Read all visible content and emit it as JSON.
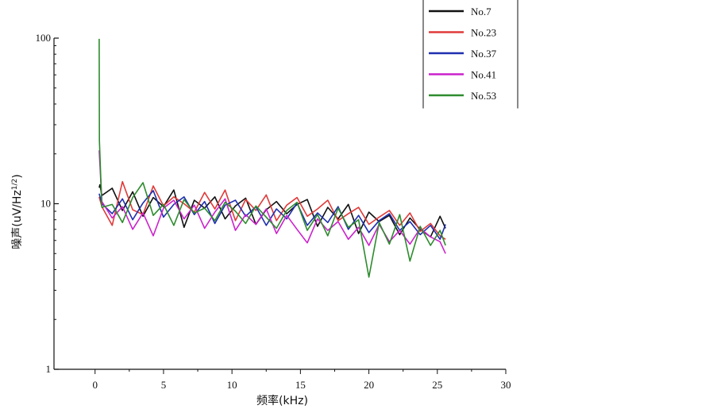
{
  "chart_data": {
    "type": "line",
    "xlabel": "频率(kHz)",
    "ylabel": "噪声(uV/Hz",
    "ylabel_sup": "1/2",
    "ylabel_close": ")",
    "xlim": [
      -3,
      30
    ],
    "ylim": [
      1,
      100
    ],
    "yscale": "log",
    "x_ticks": [
      0,
      5,
      10,
      15,
      20,
      25,
      30
    ],
    "y_ticks": [
      1,
      10,
      100
    ],
    "y_tick_labels": [
      "1",
      "10",
      "100"
    ],
    "grid": false,
    "legend_position": "top-right",
    "series": [
      {
        "name": "No.7",
        "color": "#111111",
        "x": [
          0.3,
          0.35,
          0.5,
          1.25,
          2.0,
          2.75,
          3.5,
          4.25,
          5.0,
          5.75,
          6.5,
          7.25,
          8.0,
          8.75,
          9.5,
          10.25,
          11.0,
          11.75,
          12.5,
          13.25,
          14.0,
          14.75,
          15.5,
          16.25,
          17.0,
          17.75,
          18.5,
          19.25,
          20.0,
          20.75,
          21.5,
          22.25,
          23.0,
          23.75,
          24.5,
          25.2,
          25.6
        ],
        "y": [
          12.5,
          13.0,
          11.2,
          12.4,
          9.1,
          11.8,
          8.4,
          10.9,
          9.6,
          12.1,
          7.2,
          10.5,
          9.4,
          11.0,
          8.1,
          9.7,
          10.8,
          7.5,
          9.2,
          10.3,
          8.7,
          9.9,
          10.6,
          7.3,
          9.5,
          8.1,
          9.9,
          6.6,
          8.9,
          7.8,
          8.5,
          6.5,
          8.2,
          7.0,
          6.3,
          8.4,
          7.1
        ]
      },
      {
        "name": "No.23",
        "color": "#e03a3a",
        "x": [
          0.3,
          0.5,
          1.25,
          2.0,
          2.75,
          3.5,
          4.25,
          5.0,
          5.75,
          6.5,
          7.25,
          8.0,
          8.75,
          9.5,
          10.25,
          11.0,
          11.75,
          12.5,
          13.25,
          14.0,
          14.75,
          15.5,
          16.25,
          17.0,
          17.75,
          18.5,
          19.25,
          20.0,
          20.75,
          21.5,
          22.25,
          23.0,
          23.75,
          24.5,
          25.2,
          25.6
        ],
        "y": [
          11.0,
          9.6,
          7.4,
          13.6,
          9.2,
          8.6,
          12.8,
          9.7,
          11.0,
          10.0,
          8.9,
          11.7,
          9.3,
          12.1,
          7.9,
          10.6,
          9.1,
          11.3,
          7.9,
          9.8,
          10.9,
          8.4,
          9.3,
          10.5,
          7.9,
          8.7,
          9.5,
          7.5,
          8.3,
          9.1,
          7.4,
          8.8,
          6.8,
          7.6,
          6.4,
          6.1
        ]
      },
      {
        "name": "No.37",
        "color": "#1f2fb0",
        "x": [
          0.3,
          0.5,
          1.25,
          2.0,
          2.75,
          3.5,
          4.25,
          5.0,
          5.75,
          6.5,
          7.25,
          8.0,
          8.75,
          9.5,
          10.25,
          11.0,
          11.75,
          12.5,
          13.25,
          14.0,
          14.75,
          15.5,
          16.25,
          17.0,
          17.75,
          18.5,
          19.25,
          20.0,
          20.75,
          21.5,
          22.25,
          23.0,
          23.75,
          24.5,
          25.2,
          25.6
        ],
        "y": [
          11.5,
          10.0,
          8.7,
          10.7,
          8.0,
          10.1,
          12.0,
          8.3,
          9.9,
          11.0,
          8.6,
          10.3,
          7.6,
          9.8,
          10.5,
          8.4,
          9.6,
          7.4,
          9.3,
          8.1,
          10.1,
          7.4,
          8.8,
          7.7,
          9.6,
          7.0,
          8.5,
          6.7,
          7.9,
          8.7,
          6.9,
          7.8,
          6.5,
          7.4,
          6.1,
          7.5
        ]
      },
      {
        "name": "No.41",
        "color": "#cc22cc",
        "x": [
          0.3,
          0.5,
          1.25,
          2.0,
          2.75,
          3.5,
          4.25,
          5.0,
          5.75,
          6.5,
          7.25,
          8.0,
          8.75,
          9.5,
          10.25,
          11.0,
          11.75,
          12.5,
          13.25,
          14.0,
          14.75,
          15.5,
          16.25,
          17.0,
          17.75,
          18.5,
          19.25,
          20.0,
          20.75,
          21.5,
          22.25,
          23.0,
          23.75,
          24.5,
          25.2,
          25.6
        ],
        "y": [
          21.0,
          10.3,
          8.2,
          9.6,
          7.0,
          8.8,
          6.4,
          9.4,
          10.5,
          8.1,
          9.8,
          7.1,
          8.9,
          10.7,
          6.9,
          8.6,
          7.5,
          9.3,
          6.6,
          8.5,
          7.0,
          5.8,
          8.1,
          6.9,
          7.8,
          6.1,
          7.2,
          5.6,
          7.5,
          5.9,
          6.9,
          5.7,
          7.1,
          6.3,
          5.9,
          5.0
        ]
      },
      {
        "name": "No.53",
        "color": "#2e8b2e",
        "x": [
          0.3,
          0.32,
          0.5,
          1.25,
          2.0,
          2.75,
          3.5,
          4.25,
          5.0,
          5.75,
          6.5,
          7.25,
          8.0,
          8.75,
          9.5,
          10.25,
          11.0,
          11.75,
          12.5,
          13.25,
          14.0,
          14.75,
          15.5,
          16.25,
          17.0,
          17.75,
          18.5,
          19.25,
          20.0,
          20.75,
          21.5,
          22.25,
          23.0,
          23.75,
          24.5,
          25.2,
          25.6
        ],
        "y": [
          99.0,
          24.0,
          9.5,
          9.9,
          7.7,
          10.9,
          13.4,
          8.5,
          9.9,
          7.4,
          10.6,
          8.8,
          9.4,
          7.9,
          10.2,
          9.0,
          7.6,
          9.7,
          8.3,
          7.1,
          9.1,
          10.2,
          6.9,
          8.6,
          6.4,
          9.4,
          7.2,
          8.0,
          3.6,
          7.7,
          5.7,
          8.6,
          4.5,
          7.3,
          5.6,
          6.9,
          5.6
        ]
      }
    ]
  }
}
